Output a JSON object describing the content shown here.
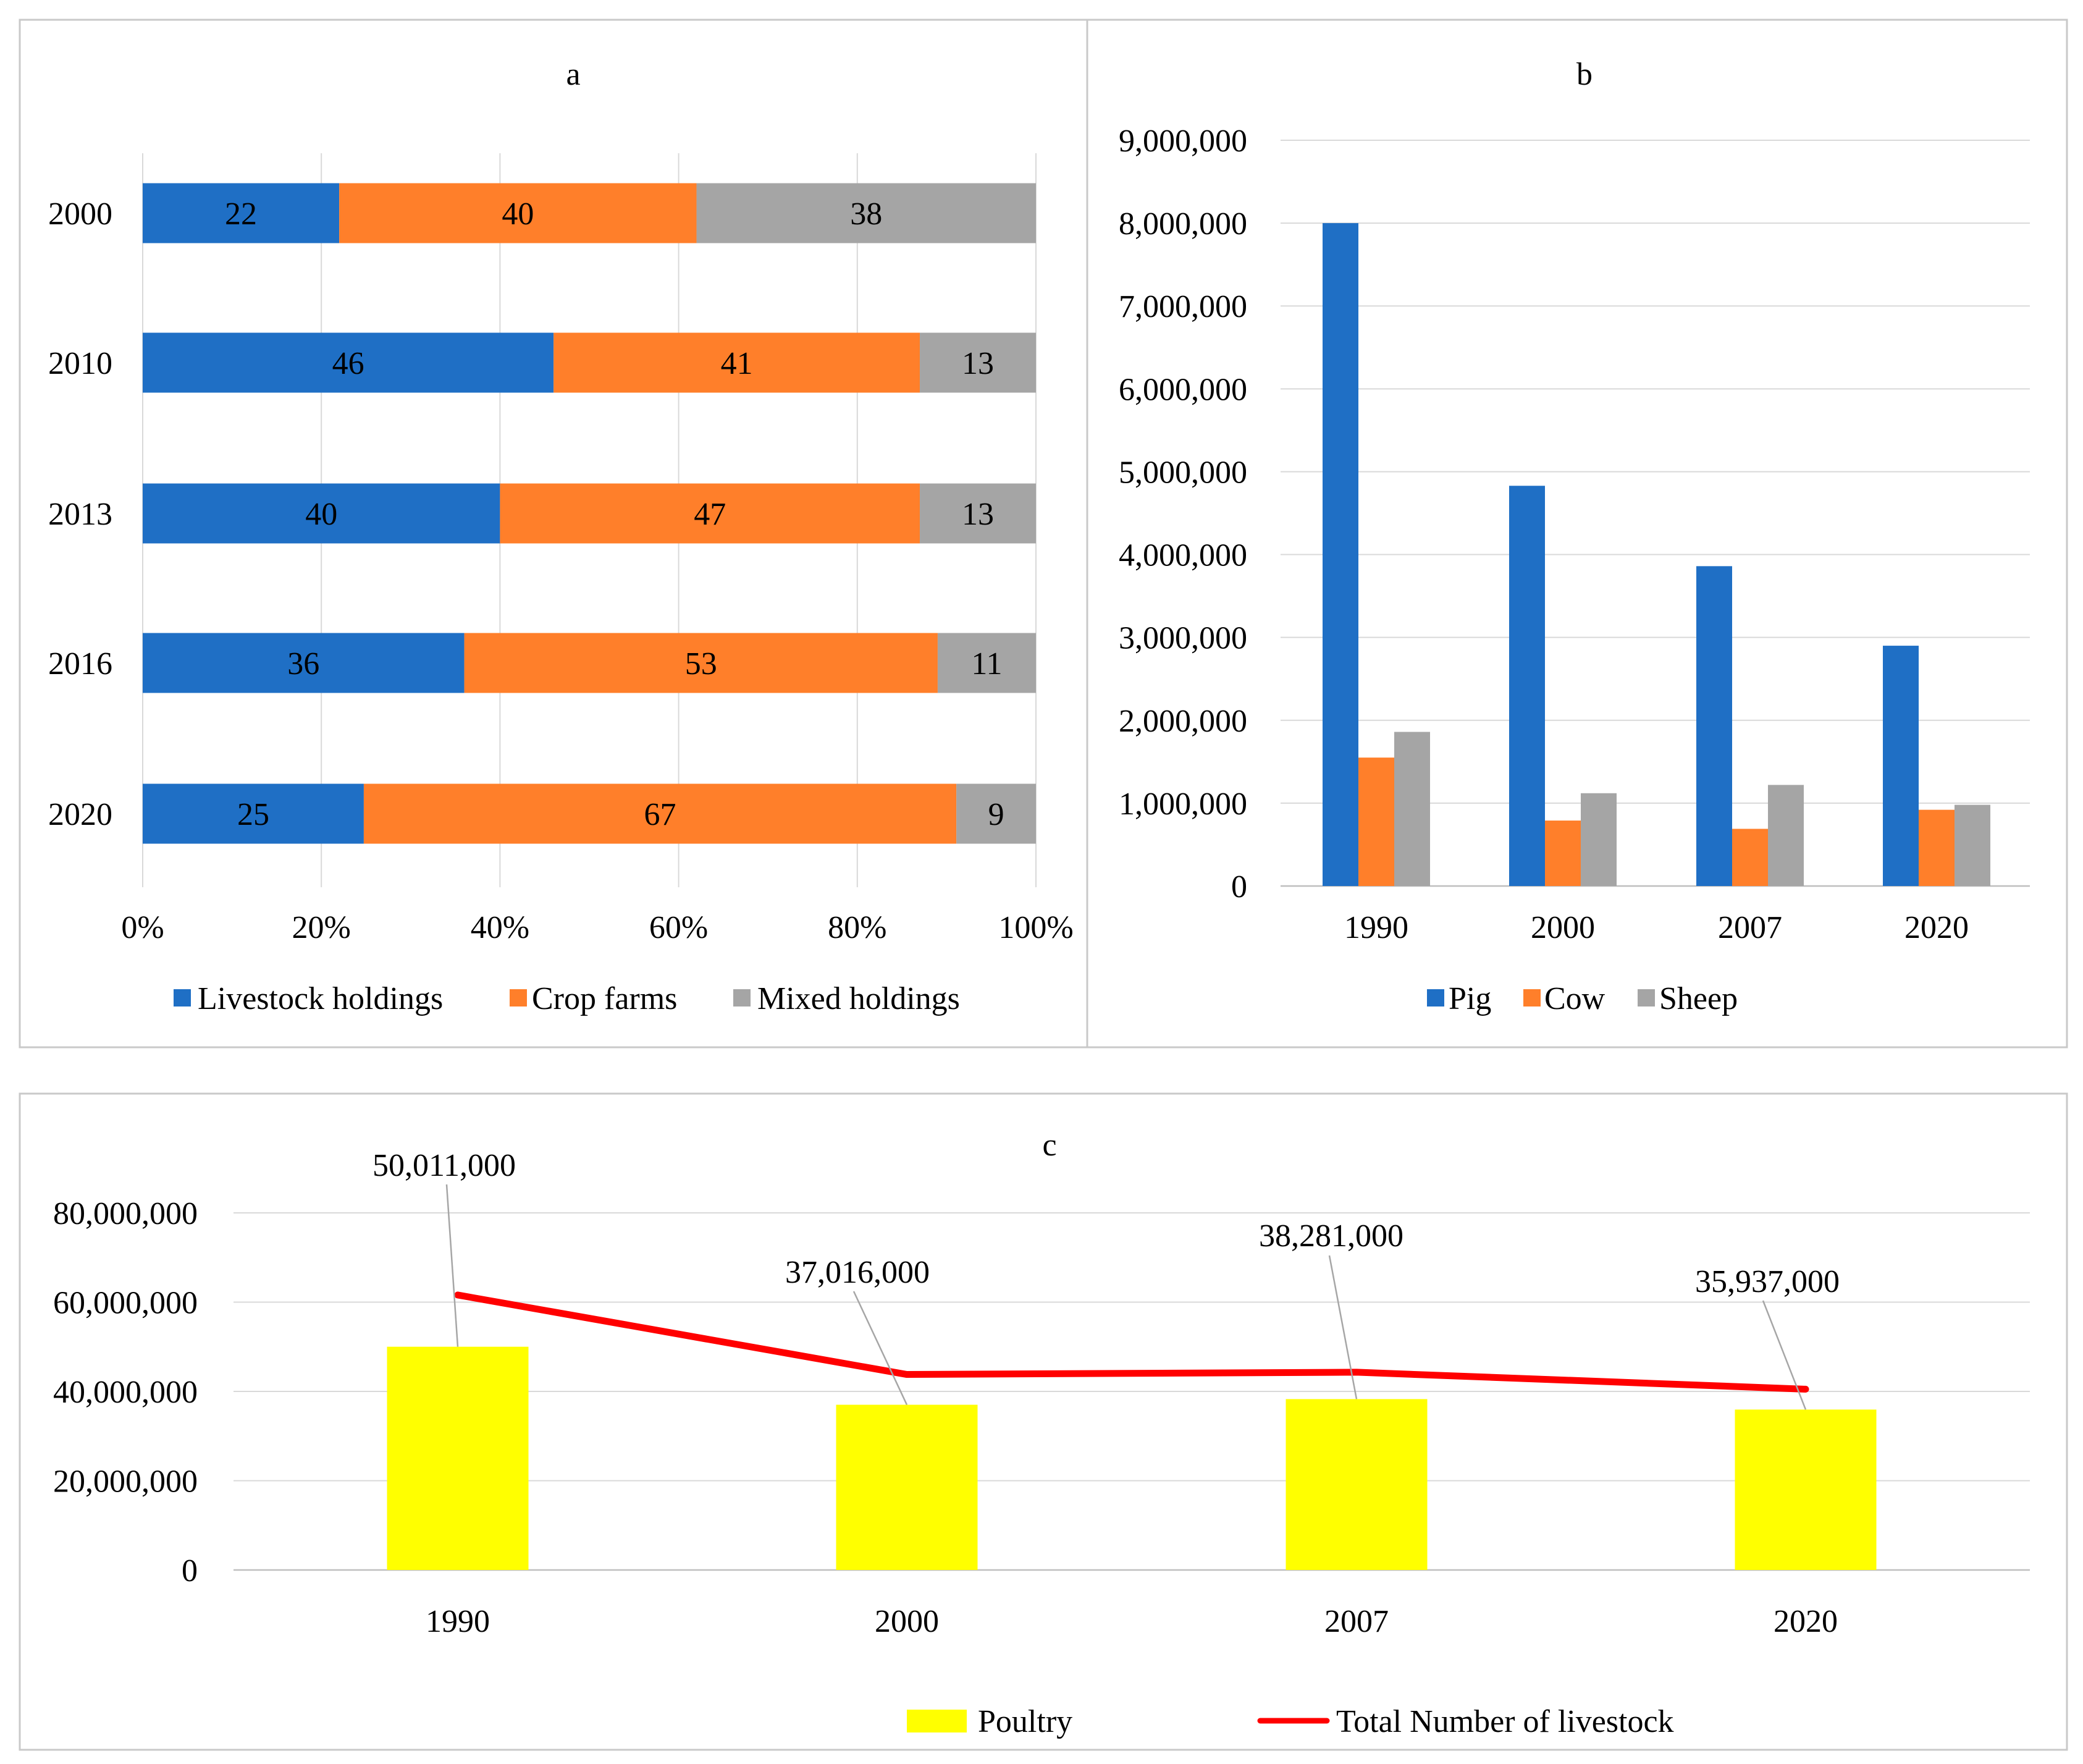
{
  "chart_data": [
    {
      "type": "bar",
      "horizontal": true,
      "stacked": true,
      "title": "a",
      "categories": [
        "2000",
        "2010",
        "2013",
        "2016",
        "2020"
      ],
      "series": [
        {
          "name": "Livestock holdings",
          "values": [
            22,
            46,
            40,
            36,
            25
          ],
          "color": "#1f6fc5"
        },
        {
          "name": "Crop farms",
          "values": [
            40,
            41,
            47,
            53,
            67
          ],
          "color": "#ff7f2a"
        },
        {
          "name": "Mixed holdings",
          "values": [
            38,
            13,
            13,
            11,
            9
          ],
          "color": "#a5a5a5"
        }
      ],
      "x_ticks": [
        "0%",
        "20%",
        "40%",
        "60%",
        "80%",
        "100%"
      ],
      "xlim": [
        0,
        100
      ],
      "grid": true,
      "legend": "bottom"
    },
    {
      "type": "bar",
      "title": "b",
      "categories": [
        "1990",
        "2000",
        "2007",
        "2020"
      ],
      "series": [
        {
          "name": "Pig",
          "values": [
            8000000,
            4830000,
            3860000,
            2900000
          ],
          "color": "#1f6fc5"
        },
        {
          "name": "Cow",
          "values": [
            1550000,
            790000,
            690000,
            920000
          ],
          "color": "#ff7f2a"
        },
        {
          "name": "Sheep",
          "values": [
            1860000,
            1120000,
            1220000,
            980000
          ],
          "color": "#a5a5a5"
        }
      ],
      "y_ticks": [
        "0",
        "1,000,000",
        "2,000,000",
        "3,000,000",
        "4,000,000",
        "5,000,000",
        "6,000,000",
        "7,000,000",
        "8,000,000",
        "9,000,000"
      ],
      "ylim": [
        0,
        9000000
      ],
      "grid": true,
      "legend": "bottom"
    },
    {
      "type": "bar",
      "title": "c",
      "categories": [
        "1990",
        "2000",
        "2007",
        "2020"
      ],
      "series": [
        {
          "name": "Poultry",
          "type": "bar",
          "values": [
            50011000,
            37016000,
            38281000,
            35937000
          ],
          "labels": [
            "50,011,000",
            "37,016,000",
            "38,281,000",
            "35,937,000"
          ],
          "color": "#ffff00"
        },
        {
          "name": "Total Number of livestock",
          "type": "line",
          "values": [
            61600000,
            43800000,
            44300000,
            40500000
          ],
          "color": "#ff0000"
        }
      ],
      "y_ticks": [
        "0",
        "20,000,000",
        "40,000,000",
        "60,000,000",
        "80,000,000"
      ],
      "ylim": [
        0,
        80000000
      ],
      "grid": true,
      "legend": "bottom"
    }
  ]
}
